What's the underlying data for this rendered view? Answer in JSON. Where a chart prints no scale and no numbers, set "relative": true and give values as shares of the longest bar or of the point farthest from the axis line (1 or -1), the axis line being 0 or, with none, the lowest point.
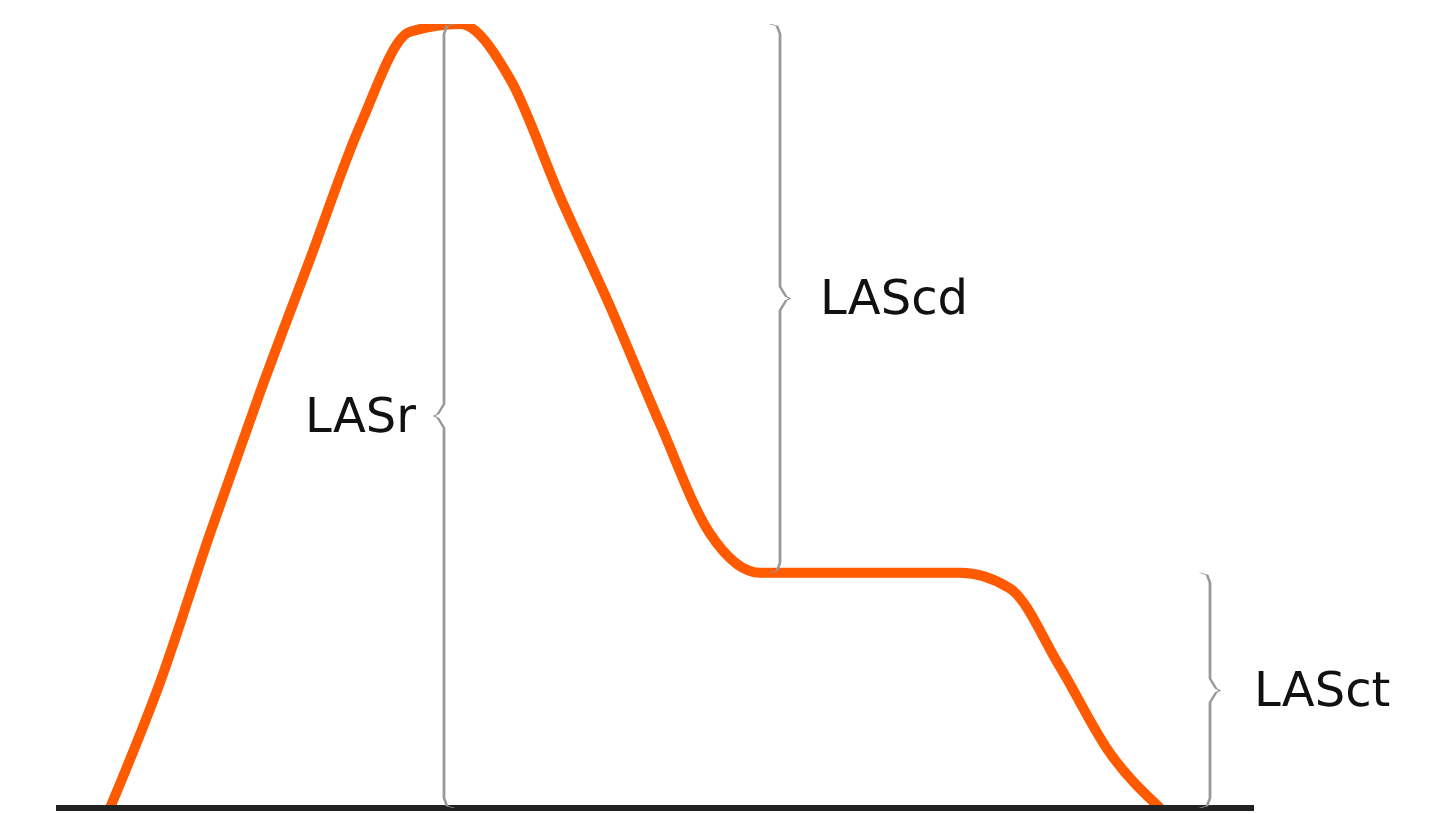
{
  "chart_data": {
    "type": "line",
    "relative": true,
    "categories": [
      null,
      null,
      null,
      null,
      null,
      null,
      null,
      null,
      null,
      null,
      null,
      null,
      null,
      null,
      null,
      null,
      null,
      null,
      null,
      null,
      null,
      null
    ],
    "series": [
      {
        "color": "#ff5a00",
        "values": [
          0,
          0.16,
          0.35,
          0.53,
          0.7,
          0.87,
          0.99,
          1,
          0.93,
          0.78,
          0.64,
          0.49,
          0.35,
          0.3,
          0.3,
          0.3,
          0.3,
          0.3,
          0.28,
          0.18,
          0.07,
          0
        ]
      }
    ],
    "annotations": [
      "LASr",
      "LAScd",
      "LASct"
    ],
    "marker": "none",
    "grid": false,
    "legend": false
  }
}
